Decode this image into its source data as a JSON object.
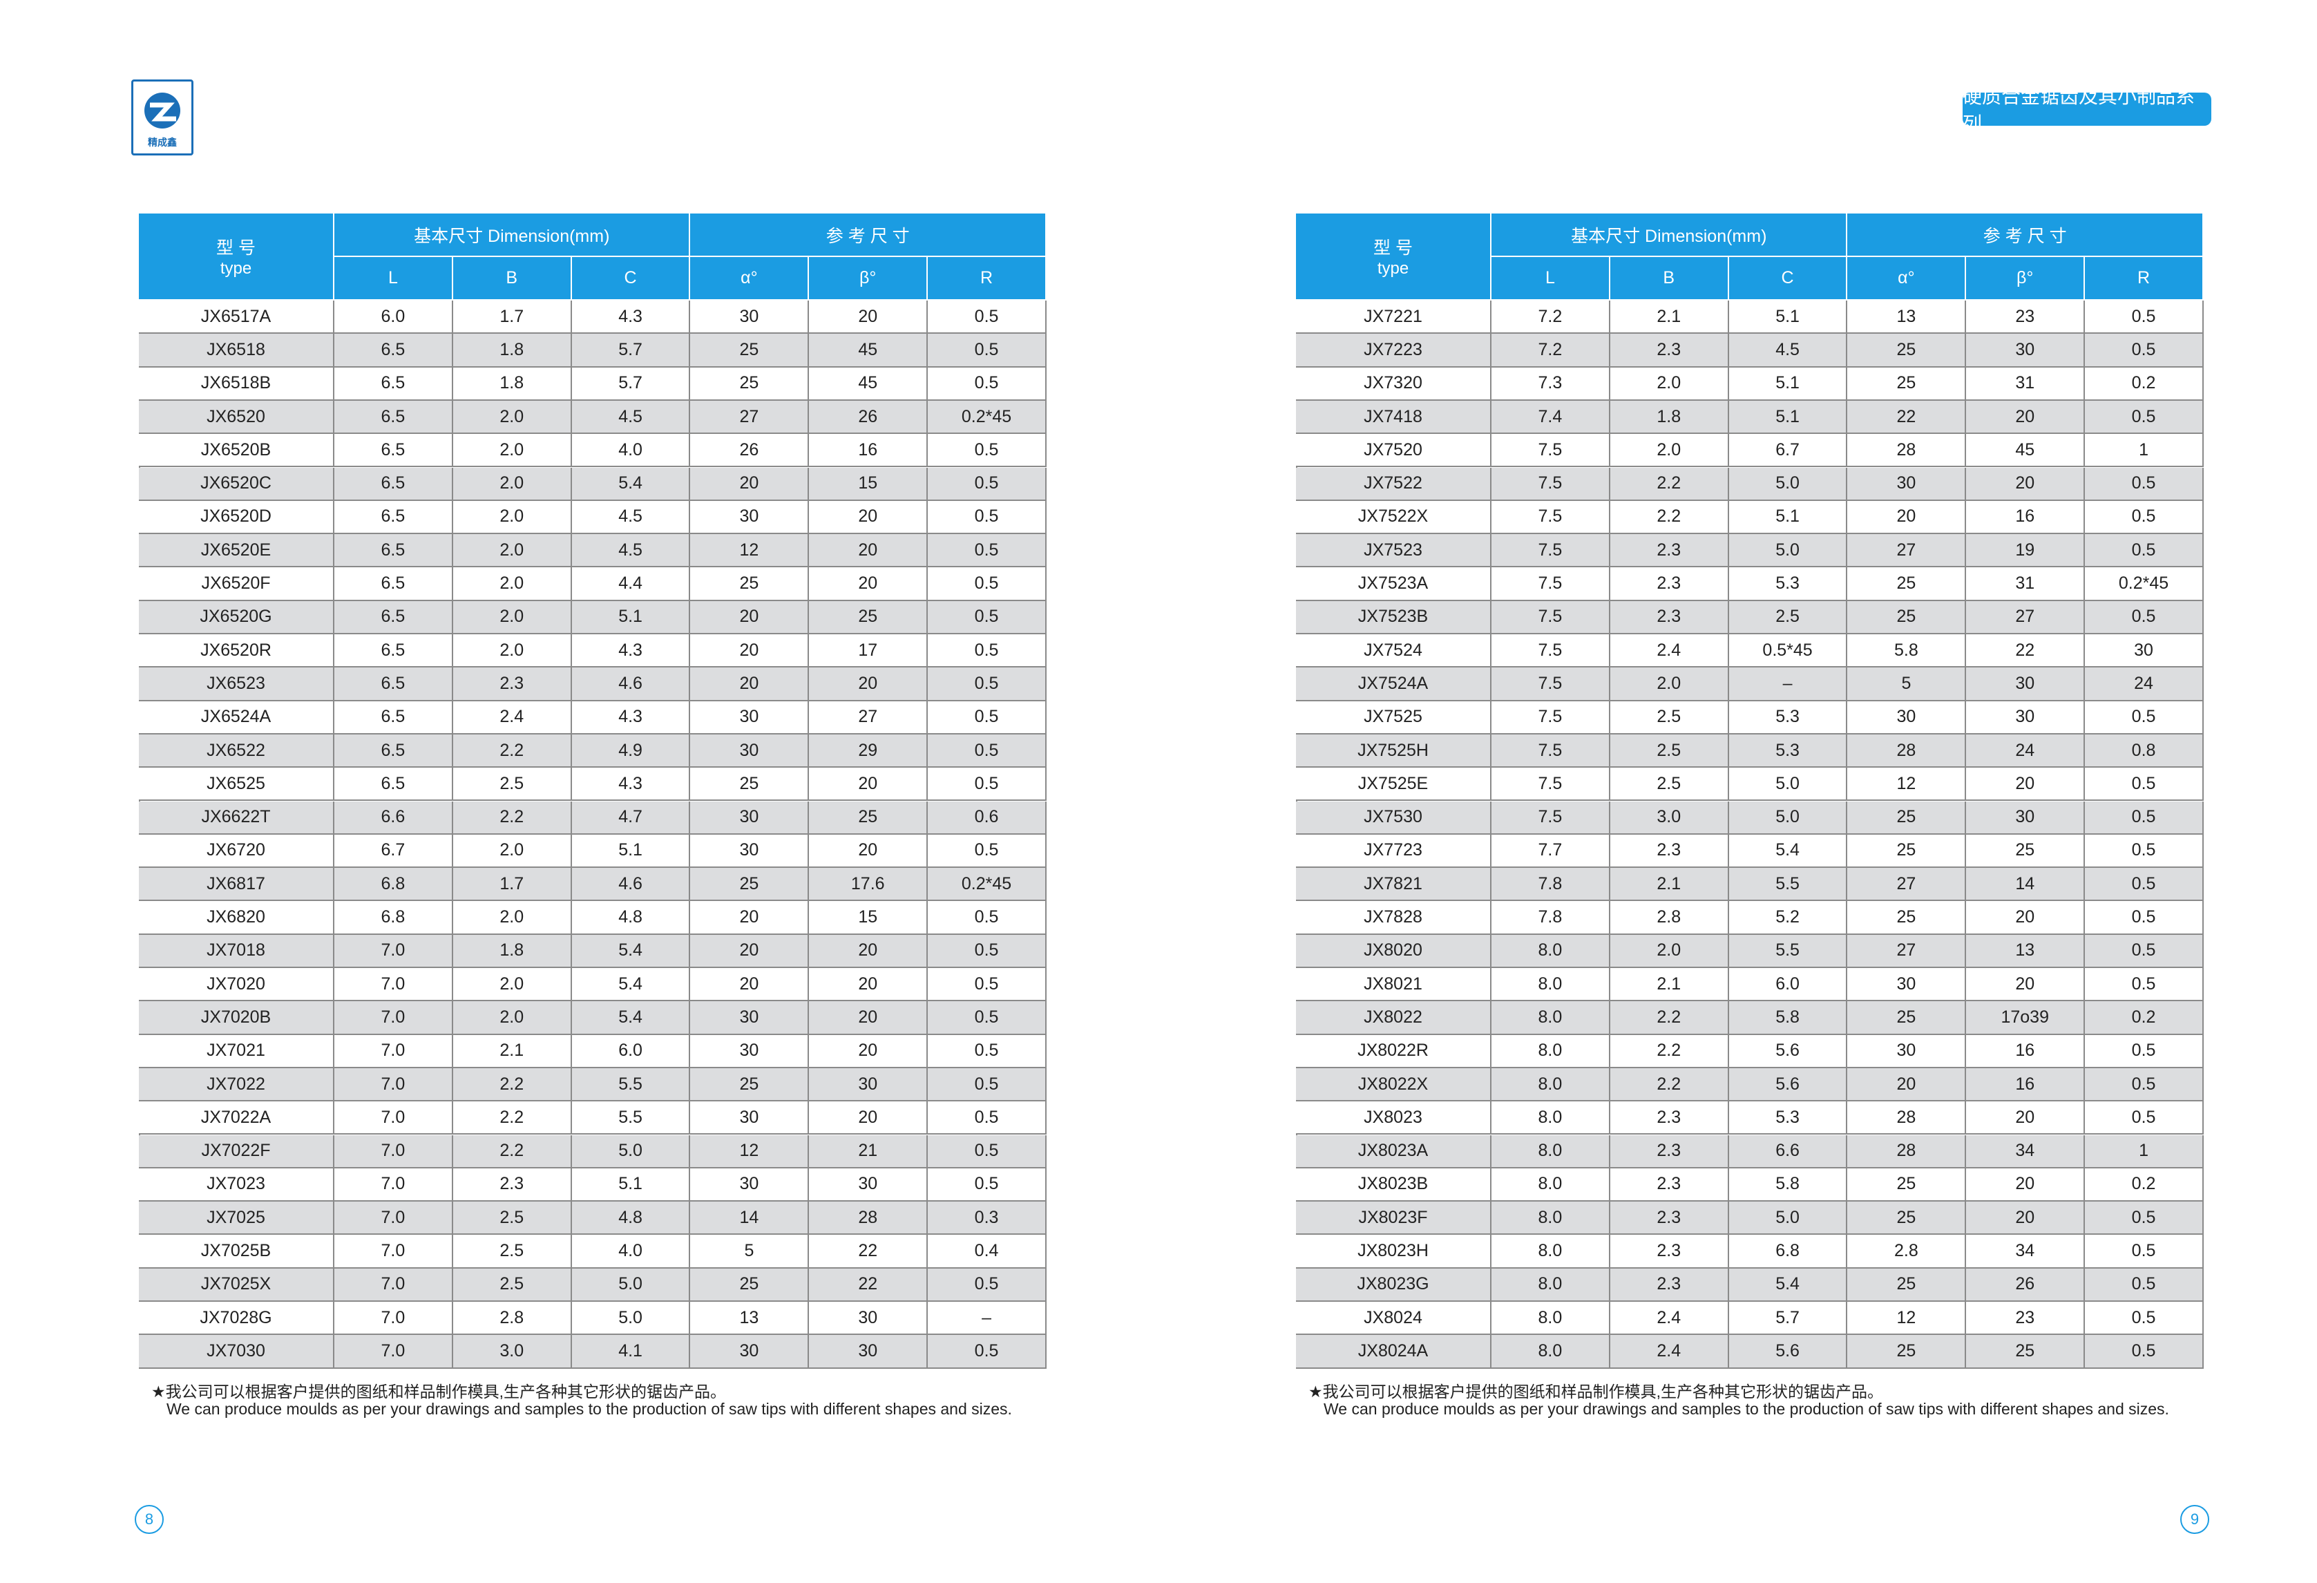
{
  "logo": {
    "text": "精成鑫"
  },
  "header": {
    "series": "硬质合金锯齿及其小制品系列"
  },
  "pages": [
    {
      "table": {
        "type_zh": "型 号",
        "type_en": "type",
        "group_basic": "基本尺寸 Dimension(mm)",
        "group_ref": "参 考 尺 寸",
        "columns": [
          "L",
          "B",
          "C",
          "α°",
          "β°",
          "R"
        ],
        "rows": [
          [
            "JX6517A",
            "6.0",
            "1.7",
            "4.3",
            "30",
            "20",
            "0.5"
          ],
          [
            "JX6518",
            "6.5",
            "1.8",
            "5.7",
            "25",
            "45",
            "0.5"
          ],
          [
            "JX6518B",
            "6.5",
            "1.8",
            "5.7",
            "25",
            "45",
            "0.5"
          ],
          [
            "JX6520",
            "6.5",
            "2.0",
            "4.5",
            "27",
            "26",
            "0.2*45"
          ],
          [
            "JX6520B",
            "6.5",
            "2.0",
            "4.0",
            "26",
            "16",
            "0.5"
          ],
          [
            "JX6520C",
            "6.5",
            "2.0",
            "5.4",
            "20",
            "15",
            "0.5"
          ],
          [
            "JX6520D",
            "6.5",
            "2.0",
            "4.5",
            "30",
            "20",
            "0.5"
          ],
          [
            "JX6520E",
            "6.5",
            "2.0",
            "4.5",
            "12",
            "20",
            "0.5"
          ],
          [
            "JX6520F",
            "6.5",
            "2.0",
            "4.4",
            "25",
            "20",
            "0.5"
          ],
          [
            "JX6520G",
            "6.5",
            "2.0",
            "5.1",
            "20",
            "25",
            "0.5"
          ],
          [
            "JX6520R",
            "6.5",
            "2.0",
            "4.3",
            "20",
            "17",
            "0.5"
          ],
          [
            "JX6523",
            "6.5",
            "2.3",
            "4.6",
            "20",
            "20",
            "0.5"
          ],
          [
            "JX6524A",
            "6.5",
            "2.4",
            "4.3",
            "30",
            "27",
            "0.5"
          ],
          [
            "JX6522",
            "6.5",
            "2.2",
            "4.9",
            "30",
            "29",
            "0.5"
          ],
          [
            "JX6525",
            "6.5",
            "2.5",
            "4.3",
            "25",
            "20",
            "0.5"
          ],
          [
            "JX6622T",
            "6.6",
            "2.2",
            "4.7",
            "30",
            "25",
            "0.6"
          ],
          [
            "JX6720",
            "6.7",
            "2.0",
            "5.1",
            "30",
            "20",
            "0.5"
          ],
          [
            "JX6817",
            "6.8",
            "1.7",
            "4.6",
            "25",
            "17.6",
            "0.2*45"
          ],
          [
            "JX6820",
            "6.8",
            "2.0",
            "4.8",
            "20",
            "15",
            "0.5"
          ],
          [
            "JX7018",
            "7.0",
            "1.8",
            "5.4",
            "20",
            "20",
            "0.5"
          ],
          [
            "JX7020",
            "7.0",
            "2.0",
            "5.4",
            "20",
            "20",
            "0.5"
          ],
          [
            "JX7020B",
            "7.0",
            "2.0",
            "5.4",
            "30",
            "20",
            "0.5"
          ],
          [
            "JX7021",
            "7.0",
            "2.1",
            "6.0",
            "30",
            "20",
            "0.5"
          ],
          [
            "JX7022",
            "7.0",
            "2.2",
            "5.5",
            "25",
            "30",
            "0.5"
          ],
          [
            "JX7022A",
            "7.0",
            "2.2",
            "5.5",
            "30",
            "20",
            "0.5"
          ],
          [
            "JX7022F",
            "7.0",
            "2.2",
            "5.0",
            "12",
            "21",
            "0.5"
          ],
          [
            "JX7023",
            "7.0",
            "2.3",
            "5.1",
            "30",
            "30",
            "0.5"
          ],
          [
            "JX7025",
            "7.0",
            "2.5",
            "4.8",
            "14",
            "28",
            "0.3"
          ],
          [
            "JX7025B",
            "7.0",
            "2.5",
            "4.0",
            "5",
            "22",
            "0.4"
          ],
          [
            "JX7025X",
            "7.0",
            "2.5",
            "5.0",
            "25",
            "22",
            "0.5"
          ],
          [
            "JX7028G",
            "7.0",
            "2.8",
            "5.0",
            "13",
            "30",
            "–"
          ],
          [
            "JX7030",
            "7.0",
            "3.0",
            "4.1",
            "30",
            "30",
            "0.5"
          ]
        ]
      },
      "note": {
        "zh": "★我公司可以根据客户提供的图纸和样品制作模具,生产各种其它形状的锯齿产品。",
        "en": "We can produce moulds as per your drawings and samples to the production of saw tips with different shapes and sizes."
      },
      "page_number": "8"
    },
    {
      "table": {
        "type_zh": "型 号",
        "type_en": "type",
        "group_basic": "基本尺寸 Dimension(mm)",
        "group_ref": "参 考 尺 寸",
        "columns": [
          "L",
          "B",
          "C",
          "α°",
          "β°",
          "R"
        ],
        "rows": [
          [
            "JX7221",
            "7.2",
            "2.1",
            "5.1",
            "13",
            "23",
            "0.5"
          ],
          [
            "JX7223",
            "7.2",
            "2.3",
            "4.5",
            "25",
            "30",
            "0.5"
          ],
          [
            "JX7320",
            "7.3",
            "2.0",
            "5.1",
            "25",
            "31",
            "0.2"
          ],
          [
            "JX7418",
            "7.4",
            "1.8",
            "5.1",
            "22",
            "20",
            "0.5"
          ],
          [
            "JX7520",
            "7.5",
            "2.0",
            "6.7",
            "28",
            "45",
            "1"
          ],
          [
            "JX7522",
            "7.5",
            "2.2",
            "5.0",
            "30",
            "20",
            "0.5"
          ],
          [
            "JX7522X",
            "7.5",
            "2.2",
            "5.1",
            "20",
            "16",
            "0.5"
          ],
          [
            "JX7523",
            "7.5",
            "2.3",
            "5.0",
            "27",
            "19",
            "0.5"
          ],
          [
            "JX7523A",
            "7.5",
            "2.3",
            "5.3",
            "25",
            "31",
            "0.2*45"
          ],
          [
            "JX7523B",
            "7.5",
            "2.3",
            "2.5",
            "25",
            "27",
            "0.5"
          ],
          [
            "JX7524",
            "7.5",
            "2.4",
            "0.5*45",
            "5.8",
            "22",
            "30"
          ],
          [
            "JX7524A",
            "7.5",
            "2.0",
            "–",
            "5",
            "30",
            "24"
          ],
          [
            "JX7525",
            "7.5",
            "2.5",
            "5.3",
            "30",
            "30",
            "0.5"
          ],
          [
            "JX7525H",
            "7.5",
            "2.5",
            "5.3",
            "28",
            "24",
            "0.8"
          ],
          [
            "JX7525E",
            "7.5",
            "2.5",
            "5.0",
            "12",
            "20",
            "0.5"
          ],
          [
            "JX7530",
            "7.5",
            "3.0",
            "5.0",
            "25",
            "30",
            "0.5"
          ],
          [
            "JX7723",
            "7.7",
            "2.3",
            "5.4",
            "25",
            "25",
            "0.5"
          ],
          [
            "JX7821",
            "7.8",
            "2.1",
            "5.5",
            "27",
            "14",
            "0.5"
          ],
          [
            "JX7828",
            "7.8",
            "2.8",
            "5.2",
            "25",
            "20",
            "0.5"
          ],
          [
            "JX8020",
            "8.0",
            "2.0",
            "5.5",
            "27",
            "13",
            "0.5"
          ],
          [
            "JX8021",
            "8.0",
            "2.1",
            "6.0",
            "30",
            "20",
            "0.5"
          ],
          [
            "JX8022",
            "8.0",
            "2.2",
            "5.8",
            "25",
            "17o39",
            "0.2"
          ],
          [
            "JX8022R",
            "8.0",
            "2.2",
            "5.6",
            "30",
            "16",
            "0.5"
          ],
          [
            "JX8022X",
            "8.0",
            "2.2",
            "5.6",
            "20",
            "16",
            "0.5"
          ],
          [
            "JX8023",
            "8.0",
            "2.3",
            "5.3",
            "28",
            "20",
            "0.5"
          ],
          [
            "JX8023A",
            "8.0",
            "2.3",
            "6.6",
            "28",
            "34",
            "1"
          ],
          [
            "JX8023B",
            "8.0",
            "2.3",
            "5.8",
            "25",
            "20",
            "0.2"
          ],
          [
            "JX8023F",
            "8.0",
            "2.3",
            "5.0",
            "25",
            "20",
            "0.5"
          ],
          [
            "JX8023H",
            "8.0",
            "2.3",
            "6.8",
            "2.8",
            "34",
            "0.5"
          ],
          [
            "JX8023G",
            "8.0",
            "2.3",
            "5.4",
            "25",
            "26",
            "0.5"
          ],
          [
            "JX8024",
            "8.0",
            "2.4",
            "5.7",
            "12",
            "23",
            "0.5"
          ],
          [
            "JX8024A",
            "8.0",
            "2.4",
            "5.6",
            "25",
            "25",
            "0.5"
          ]
        ]
      },
      "note": {
        "zh": "★我公司可以根据客户提供的图纸和样品制作模具,生产各种其它形状的锯齿产品。",
        "en": "We can produce moulds as per your drawings and samples to the production of saw tips with different shapes and sizes."
      },
      "page_number": "9"
    }
  ]
}
